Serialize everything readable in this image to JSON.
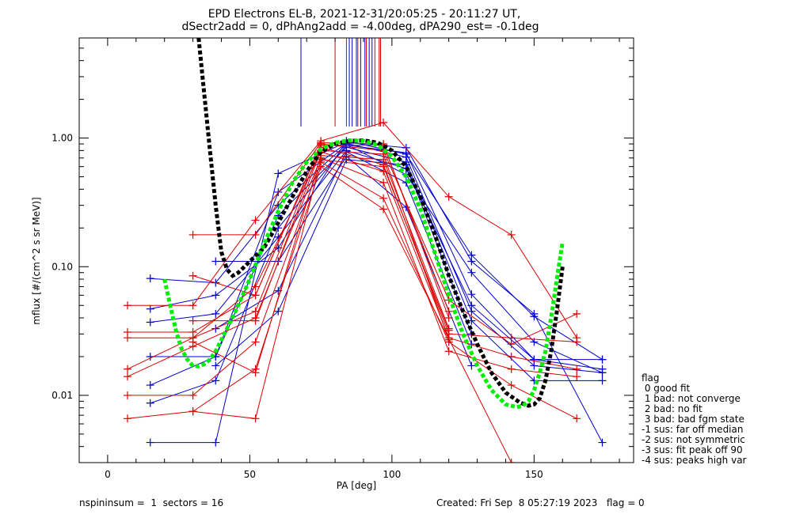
{
  "chart_data": {
    "type": "line",
    "title_line1": "EPD Electrons EL-B, 2021-12-31/20:05:25 - 20:11:27 UT,",
    "title_line2": "dSectr2add = 0, dPhAng2add = -4.00deg, dPA290_est=  -0.1deg",
    "xlabel": "PA [deg]",
    "ylabel": "mflux [#/(cm^2 s sr MeV)]",
    "xlim": [
      -10,
      185
    ],
    "ylim": [
      0.003,
      6.0
    ],
    "y_scale": "log",
    "x_ticks": [
      0,
      50,
      100,
      150
    ],
    "x_tick_labels": [
      "0",
      "50",
      "100",
      "150"
    ],
    "y_ticks": [
      0.01,
      0.1,
      1.0
    ],
    "y_tick_labels": [
      "0.01",
      "0.10",
      "1.00"
    ],
    "colors": {
      "blue": "#0000cc",
      "red": "#dd0000",
      "black_fit": "#000000",
      "green_fit": "#00ee00"
    },
    "vertical_marks": {
      "blue": [
        68,
        85,
        86,
        87.5,
        89,
        90.5,
        92,
        93
      ],
      "red": [
        80,
        84,
        88,
        91,
        94,
        95.5,
        96
      ]
    },
    "series": [
      {
        "color": "blue",
        "x": [
          15,
          38,
          60,
          84,
          105,
          128,
          150,
          174
        ],
        "y": [
          0.0043,
          0.0043,
          0.53,
          0.93,
          0.84,
          0.11,
          0.043,
          0.0043
        ]
      },
      {
        "color": "blue",
        "x": [
          15,
          38,
          60,
          84,
          105,
          128,
          150,
          174
        ],
        "y": [
          0.0087,
          0.013,
          0.2,
          0.88,
          0.77,
          0.061,
          0.019,
          0.019
        ]
      },
      {
        "color": "blue",
        "x": [
          15,
          38,
          60,
          84,
          105,
          128,
          150,
          174
        ],
        "y": [
          0.012,
          0.02,
          0.38,
          0.91,
          0.71,
          0.045,
          0.017,
          0.015
        ]
      },
      {
        "color": "blue",
        "x": [
          15,
          38,
          60,
          84,
          105,
          128,
          150,
          174
        ],
        "y": [
          0.02,
          0.02,
          0.25,
          0.85,
          0.65,
          0.038,
          0.013,
          0.013
        ]
      },
      {
        "color": "blue",
        "x": [
          15,
          38,
          60,
          84,
          105,
          128,
          150,
          174
        ],
        "y": [
          0.037,
          0.043,
          0.17,
          0.8,
          0.58,
          0.05,
          0.019,
          0.016
        ]
      },
      {
        "color": "blue",
        "x": [
          15,
          38,
          60,
          84,
          105,
          128,
          150,
          174
        ],
        "y": [
          0.047,
          0.06,
          0.14,
          0.95,
          0.75,
          0.123,
          0.041,
          0.019
        ]
      },
      {
        "color": "blue",
        "x": [
          15,
          38,
          60,
          84,
          105,
          128,
          150,
          174
        ],
        "y": [
          0.081,
          0.075,
          0.3,
          0.89,
          0.52,
          0.09,
          0.026,
          0.015
        ]
      },
      {
        "color": "blue",
        "x": [
          38,
          60,
          84,
          105,
          128
        ],
        "y": [
          0.11,
          0.11,
          0.72,
          0.29,
          0.017
        ]
      },
      {
        "color": "blue",
        "x": [
          38,
          60,
          84,
          105,
          128
        ],
        "y": [
          0.033,
          0.065,
          0.78,
          0.45,
          0.025
        ]
      },
      {
        "color": "blue",
        "x": [
          38,
          60,
          84,
          105,
          128
        ],
        "y": [
          0.017,
          0.045,
          0.68,
          0.62,
          0.03
        ]
      },
      {
        "color": "red",
        "x": [
          7,
          30,
          52,
          75,
          97,
          120,
          142,
          165
        ],
        "y": [
          0.05,
          0.05,
          0.23,
          0.95,
          1.32,
          0.35,
          0.177,
          0.028
        ]
      },
      {
        "color": "red",
        "x": [
          7,
          30,
          52,
          75,
          97,
          120,
          142,
          165
        ],
        "y": [
          0.031,
          0.031,
          0.06,
          0.9,
          0.8,
          0.055,
          0.025,
          0.043
        ]
      },
      {
        "color": "red",
        "x": [
          7,
          30,
          52,
          75,
          97,
          120,
          142,
          165
        ],
        "y": [
          0.028,
          0.028,
          0.045,
          0.85,
          0.62,
          0.03,
          0.028,
          0.026
        ]
      },
      {
        "color": "red",
        "x": [
          7,
          30,
          52,
          75,
          97,
          120,
          142,
          165
        ],
        "y": [
          0.016,
          0.028,
          0.07,
          0.78,
          0.55,
          0.028,
          0.02,
          0.016
        ]
      },
      {
        "color": "red",
        "x": [
          7,
          30,
          52,
          75,
          97,
          120,
          142,
          165
        ],
        "y": [
          0.014,
          0.024,
          0.04,
          0.7,
          0.45,
          0.022,
          0.016,
          0.014
        ]
      },
      {
        "color": "red",
        "x": [
          7,
          30,
          52,
          75,
          97,
          120,
          142,
          165
        ],
        "y": [
          0.01,
          0.01,
          0.026,
          0.65,
          0.34,
          0.026,
          0.012,
          0.0066
        ]
      },
      {
        "color": "red",
        "x": [
          7,
          30,
          52,
          75,
          97,
          142
        ],
        "y": [
          0.0066,
          0.0075,
          0.016,
          0.6,
          0.28,
          0.003
        ]
      },
      {
        "color": "red",
        "x": [
          30,
          52,
          75,
          97,
          120
        ],
        "y": [
          0.177,
          0.177,
          0.92,
          0.9,
          0.04
        ]
      },
      {
        "color": "red",
        "x": [
          30,
          52,
          75,
          97,
          120
        ],
        "y": [
          0.085,
          0.06,
          0.88,
          0.88,
          0.045
        ]
      },
      {
        "color": "red",
        "x": [
          30,
          52,
          75,
          97,
          120
        ],
        "y": [
          0.038,
          0.038,
          0.8,
          0.75,
          0.027
        ]
      },
      {
        "color": "red",
        "x": [
          30,
          52,
          75,
          97,
          120
        ],
        "y": [
          0.026,
          0.015,
          0.73,
          0.68,
          0.033
        ]
      },
      {
        "color": "red",
        "x": [
          30,
          52,
          75,
          97,
          120
        ],
        "y": [
          0.0075,
          0.0066,
          0.68,
          0.6,
          0.032
        ]
      }
    ],
    "fits": [
      {
        "color": "black_fit",
        "x": [
          32,
          34,
          36,
          38,
          40,
          42,
          44,
          46,
          50,
          55,
          60,
          65,
          70,
          75,
          80,
          85,
          90,
          95,
          100,
          105,
          110,
          115,
          120,
          125,
          130,
          135,
          140,
          145,
          148,
          150,
          152,
          154,
          156,
          158,
          160
        ],
        "y": [
          6.0,
          2.2,
          0.8,
          0.3,
          0.13,
          0.095,
          0.085,
          0.09,
          0.11,
          0.14,
          0.22,
          0.35,
          0.55,
          0.78,
          0.9,
          0.95,
          0.96,
          0.92,
          0.8,
          0.6,
          0.35,
          0.18,
          0.085,
          0.045,
          0.025,
          0.015,
          0.0105,
          0.0088,
          0.0083,
          0.0085,
          0.0095,
          0.013,
          0.022,
          0.045,
          0.1
        ]
      },
      {
        "color": "green_fit",
        "x": [
          20,
          22,
          24,
          26,
          28,
          30,
          32,
          34,
          36,
          38,
          40,
          45,
          50,
          55,
          60,
          65,
          70,
          75,
          80,
          85,
          90,
          95,
          100,
          105,
          110,
          115,
          120,
          125,
          130,
          135,
          140,
          144,
          146,
          148,
          150,
          152,
          154,
          156,
          158,
          160
        ],
        "y": [
          0.08,
          0.05,
          0.032,
          0.023,
          0.019,
          0.017,
          0.0168,
          0.0175,
          0.019,
          0.022,
          0.027,
          0.045,
          0.08,
          0.15,
          0.27,
          0.45,
          0.65,
          0.82,
          0.92,
          0.96,
          0.95,
          0.88,
          0.72,
          0.5,
          0.28,
          0.13,
          0.06,
          0.03,
          0.017,
          0.011,
          0.0085,
          0.0081,
          0.0083,
          0.009,
          0.011,
          0.015,
          0.022,
          0.04,
          0.08,
          0.155
        ]
      }
    ]
  },
  "legend": {
    "title": "flag",
    "items": [
      " 0 good fit",
      " 1 bad: not converge",
      " 2 bad: no fit",
      " 3 bad: bad fgm state",
      "-1 sus: far off median",
      "-2 sus: not symmetric",
      "-3 sus: fit peak off 90",
      "-4 sus: peaks high var"
    ]
  },
  "footer": {
    "left": "nspininsum =  1  sectors = 16",
    "right": "Created: Fri Sep  8 05:27:19 2023   flag = 0"
  }
}
